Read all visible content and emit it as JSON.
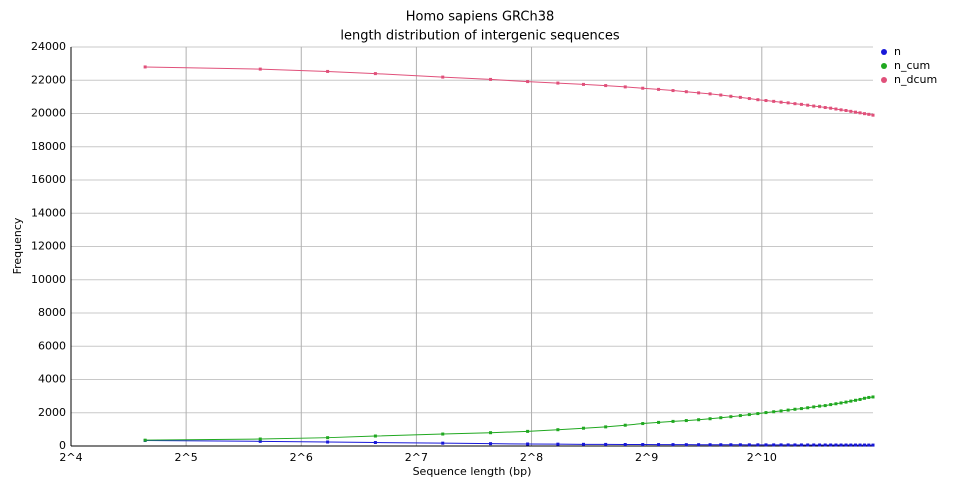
{
  "chart_data": {
    "type": "line",
    "title": "Homo sapiens GRCh38",
    "subtitle": "length distribution of intergenic sequences",
    "x_label": "Sequence length (bp)",
    "y_label": "Frequency",
    "x_scale": "log2",
    "x": [
      25,
      50,
      75,
      100,
      150,
      200,
      250,
      300,
      350,
      400,
      450,
      500,
      550,
      600,
      650,
      700,
      750,
      800,
      850,
      900,
      950,
      1000,
      1050,
      1100,
      1150,
      1200,
      1250,
      1300,
      1350,
      1400,
      1450,
      1500,
      1550,
      1600,
      1650,
      1700,
      1750,
      1800,
      1850,
      1900,
      1950,
      2000
    ],
    "series": [
      {
        "name": "n",
        "color": "#1818d8",
        "values": [
          330,
          280,
          240,
          210,
          170,
          140,
          120,
          110,
          100,
          95,
          90,
          88,
          85,
          83,
          80,
          78,
          76,
          75,
          74,
          72,
          70,
          70,
          68,
          67,
          66,
          65,
          64,
          63,
          62,
          62,
          61,
          60,
          60,
          59,
          58,
          58,
          57,
          57,
          56,
          56,
          55,
          55
        ]
      },
      {
        "name": "n_cum",
        "color": "#20a820",
        "values": [
          350,
          420,
          500,
          600,
          720,
          800,
          880,
          980,
          1070,
          1150,
          1250,
          1350,
          1420,
          1480,
          1530,
          1580,
          1640,
          1700,
          1760,
          1830,
          1890,
          1950,
          2010,
          2060,
          2110,
          2160,
          2210,
          2250,
          2300,
          2350,
          2400,
          2430,
          2490,
          2540,
          2590,
          2640,
          2700,
          2750,
          2800,
          2870,
          2920,
          2950
        ]
      },
      {
        "name": "n_dcum",
        "color": "#e0507a",
        "values": [
          22800,
          22670,
          22530,
          22400,
          22190,
          22050,
          21920,
          21830,
          21750,
          21680,
          21600,
          21520,
          21450,
          21380,
          21310,
          21240,
          21180,
          21110,
          21040,
          20970,
          20900,
          20830,
          20780,
          20730,
          20680,
          20640,
          20590,
          20550,
          20500,
          20450,
          20410,
          20360,
          20320,
          20270,
          20220,
          20180,
          20130,
          20080,
          20040,
          19990,
          19950,
          19900
        ]
      }
    ],
    "xlim": [
      16,
      2000
    ],
    "xticks": [
      {
        "value": 16,
        "label": "2^4"
      },
      {
        "value": 32,
        "label": "2^5"
      },
      {
        "value": 64,
        "label": "2^6"
      },
      {
        "value": 128,
        "label": "2^7"
      },
      {
        "value": 256,
        "label": "2^8"
      },
      {
        "value": 512,
        "label": "2^9"
      },
      {
        "value": 1024,
        "label": "2^10"
      }
    ],
    "ylim": [
      0,
      24000
    ],
    "yticks": [
      0,
      2000,
      4000,
      6000,
      8000,
      10000,
      12000,
      14000,
      16000,
      18000,
      20000,
      22000,
      24000
    ],
    "grid": true,
    "legend": "top-right"
  }
}
